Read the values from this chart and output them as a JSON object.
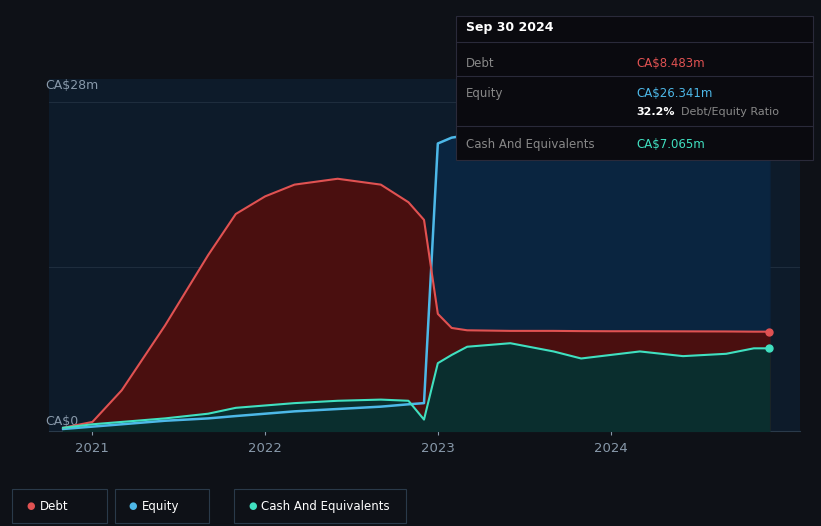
{
  "bg_color": "#0e1117",
  "plot_bg_color": "#0d1b2a",
  "grid_color": "#1e2d3d",
  "debt_color": "#e05252",
  "equity_color": "#4db8e8",
  "cash_color": "#40e0c0",
  "debt_fill": "#4a0f0f",
  "equity_fill": "#0a2540",
  "cash_fill": "#0a2e2e",
  "ylabel_text": "CA$28m",
  "y0_text": "CA$0",
  "x_ticks": [
    2021,
    2022,
    2023,
    2024
  ],
  "tooltip_title": "Sep 30 2024",
  "tooltip_debt_label": "Debt",
  "tooltip_debt_value": "CA$8.483m",
  "tooltip_equity_label": "Equity",
  "tooltip_equity_value": "CA$26.341m",
  "tooltip_ratio": "32.2%",
  "tooltip_ratio_label": "Debt/Equity Ratio",
  "tooltip_cash_label": "Cash And Equivalents",
  "tooltip_cash_value": "CA$7.065m",
  "legend_items": [
    "Debt",
    "Equity",
    "Cash And Equivalents"
  ],
  "time_points": [
    2020.83,
    2021.0,
    2021.17,
    2021.42,
    2021.67,
    2021.83,
    2022.0,
    2022.17,
    2022.42,
    2022.67,
    2022.83,
    2022.92,
    2023.0,
    2023.08,
    2023.17,
    2023.42,
    2023.67,
    2023.83,
    2024.0,
    2024.17,
    2024.42,
    2024.67,
    2024.83,
    2024.92
  ],
  "debt_values": [
    0.3,
    0.8,
    3.5,
    9.0,
    15.0,
    18.5,
    20.0,
    21.0,
    21.5,
    21.0,
    19.5,
    18.0,
    10.0,
    8.8,
    8.6,
    8.55,
    8.55,
    8.53,
    8.52,
    8.52,
    8.51,
    8.5,
    8.483,
    8.483
  ],
  "equity_values": [
    0.2,
    0.4,
    0.6,
    0.9,
    1.1,
    1.3,
    1.5,
    1.7,
    1.9,
    2.1,
    2.3,
    2.4,
    24.5,
    25.0,
    25.2,
    25.5,
    25.7,
    25.9,
    26.0,
    26.1,
    26.15,
    26.2,
    26.341,
    26.341
  ],
  "cash_values": [
    0.3,
    0.6,
    0.8,
    1.1,
    1.5,
    2.0,
    2.2,
    2.4,
    2.6,
    2.7,
    2.6,
    1.0,
    5.8,
    6.5,
    7.2,
    7.5,
    6.8,
    6.2,
    6.5,
    6.8,
    6.4,
    6.6,
    7.065,
    7.065
  ],
  "ylim": [
    0,
    30
  ],
  "xlim": [
    2020.75,
    2025.1
  ]
}
